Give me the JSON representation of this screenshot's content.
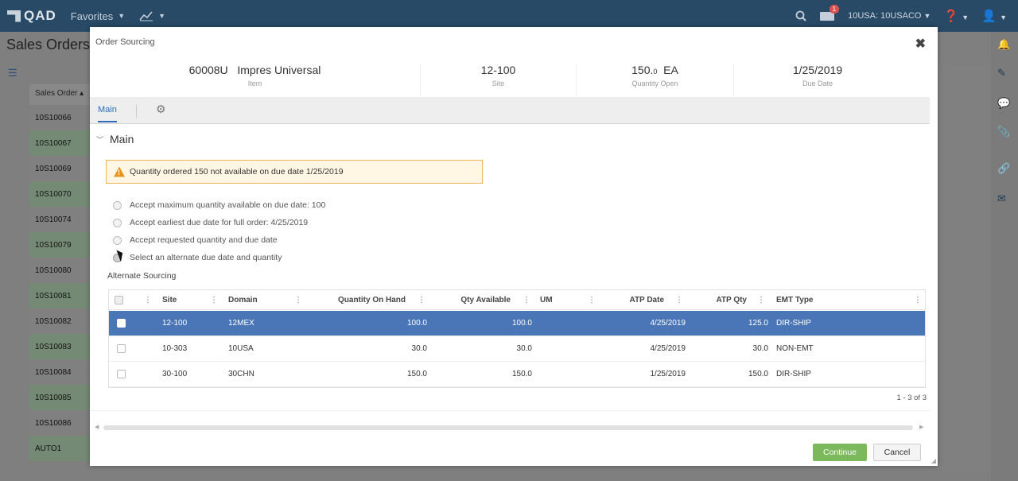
{
  "topbar": {
    "logo_text": "QAD",
    "favorites_label": "Favorites",
    "chart_menu_label": "↓",
    "account_label": "10USA: 10USACO",
    "notification_count": "1"
  },
  "background": {
    "page_title": "Sales Orders",
    "column_header": "Sales Order",
    "rows": [
      "10S10066",
      "10S10067",
      "10S10069",
      "10S10070",
      "10S10074",
      "10S10079",
      "10S10080",
      "10S10081",
      "10S10082",
      "10S10083",
      "10S10084",
      "10S10085",
      "10S10086",
      "AUTO1"
    ]
  },
  "modal": {
    "title": "Order Sourcing",
    "close_symbol": "✖",
    "summary": {
      "item_value": "60008U   Impres Universal",
      "item_label": "Item",
      "site_value": "12-100",
      "site_label": "Site",
      "qty_value": "150.",
      "qty_decimal": "0",
      "qty_unit": "EA",
      "qty_label": "Quantity Open",
      "due_value": "1/25/2019",
      "due_label": "Due Date"
    },
    "tabs": {
      "main": "Main"
    },
    "section_title": "Main",
    "warning_text": "Quantity ordered 150 not available on due date 1/25/2019",
    "options": [
      {
        "label": "Accept maximum quantity available on due date: 100",
        "selected": false
      },
      {
        "label": "Accept earliest due date for full order: 4/25/2019",
        "selected": false
      },
      {
        "label": "Accept requested quantity and due date",
        "selected": false
      },
      {
        "label": "Select an alternate due date and quantity",
        "selected": true
      }
    ],
    "alternate_label": "Alternate Sourcing",
    "grid": {
      "headers": {
        "site": "Site",
        "domain": "Domain",
        "qty_on_hand": "Quantity On Hand",
        "qty_available": "Qty Available",
        "um": "UM",
        "atp_date": "ATP Date",
        "atp_qty": "ATP Qty",
        "emt_type": "EMT Type"
      },
      "rows": [
        {
          "site": "12-100",
          "domain": "12MEX",
          "qty_on_hand": "100.0",
          "qty_available": "100.0",
          "um": "",
          "atp_date": "4/25/2019",
          "atp_qty": "125.0",
          "emt_type": "DIR-SHIP",
          "selected": true
        },
        {
          "site": "10-303",
          "domain": "10USA",
          "qty_on_hand": "30.0",
          "qty_available": "30.0",
          "um": "",
          "atp_date": "4/25/2019",
          "atp_qty": "30.0",
          "emt_type": "NON-EMT",
          "selected": false
        },
        {
          "site": "30-100",
          "domain": "30CHN",
          "qty_on_hand": "150.0",
          "qty_available": "150.0",
          "um": "",
          "atp_date": "1/25/2019",
          "atp_qty": "150.0",
          "emt_type": "DIR-SHIP",
          "selected": false
        }
      ],
      "pager": "1 - 3 of 3"
    },
    "buttons": {
      "continue": "Continue",
      "cancel": "Cancel"
    }
  },
  "colors": {
    "topbar": "#284a66",
    "selected_row": "#4a76b8",
    "continue": "#7cb85c",
    "warning_border": "#f0b557"
  }
}
